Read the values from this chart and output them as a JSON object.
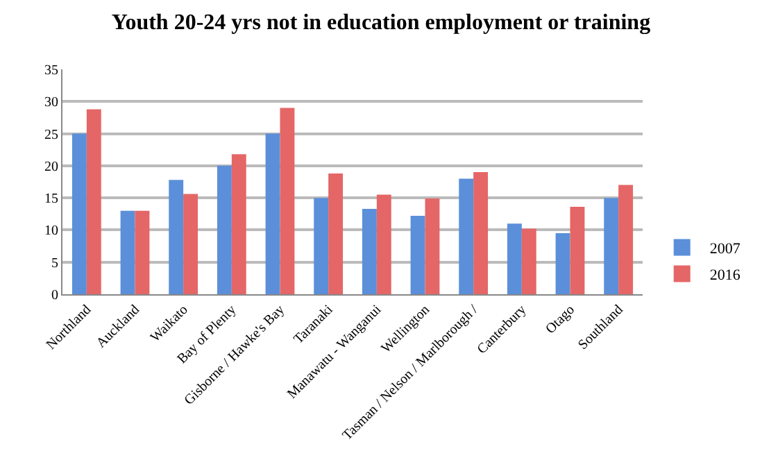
{
  "chart_data": {
    "type": "bar",
    "title": "Youth 20-24 yrs not in education employment or training",
    "categories": [
      "Northland",
      "Auckland",
      "Waikato",
      "Bay of Plenty",
      "Gisborne / Hawke's Bay",
      "Taranaki",
      "Manawatu - Wanganui",
      "Wellington",
      "Tasman / Nelson / Marlborough /",
      "Canterbury",
      "Otago",
      "Southland"
    ],
    "series": [
      {
        "name": "2007",
        "color": "#5b8fd9",
        "values": [
          25,
          13,
          17.8,
          20,
          25,
          15,
          13.3,
          12.2,
          18,
          11,
          9.5,
          15
        ]
      },
      {
        "name": "2016",
        "color": "#e56666",
        "values": [
          28.8,
          13,
          15.6,
          21.8,
          29,
          18.8,
          15.5,
          14.9,
          19,
          10.2,
          13.6,
          17
        ]
      }
    ],
    "ylim": [
      0,
      35
    ],
    "yticks": [
      0,
      5,
      10,
      15,
      20,
      25,
      30,
      35
    ],
    "grid": "y",
    "legend": "right"
  }
}
